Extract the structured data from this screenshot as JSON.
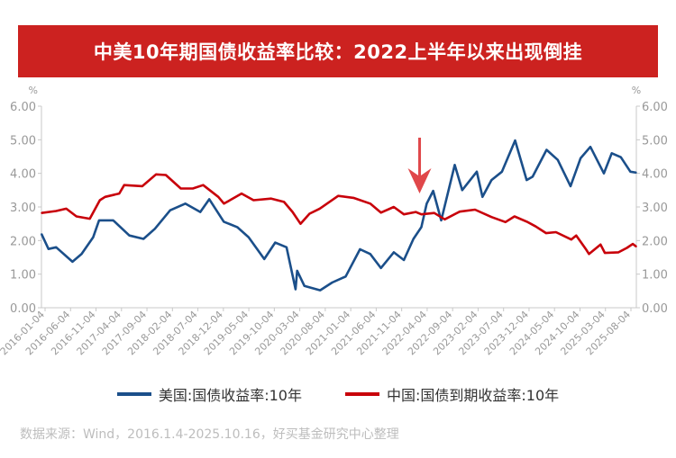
{
  "title": "中美10年期国债收益率比较：2022上半年以来出现倒挂",
  "footer": "数据来源：Wind，2016.1.4-2025.10.16，好买基金研究中心整理",
  "colors": {
    "title_bg": "#cc2220",
    "us": "#1b4f8a",
    "cn": "#c8000a",
    "arrow": "#e0474a"
  },
  "chart_data": {
    "type": "line",
    "title": "中美10年期国债收益率比较：2022上半年以来出现倒挂",
    "ylabel_left": "%",
    "ylabel_right": "%",
    "ylim": [
      0,
      6
    ],
    "yticks": [
      "0.00",
      "1.00",
      "2.00",
      "3.00",
      "4.00",
      "5.00",
      "6.00"
    ],
    "xrange": [
      "2016-01-04",
      "2025-10-16"
    ],
    "xticks": [
      "2016-01-04",
      "2016-06-04",
      "2016-11-04",
      "2017-04-04",
      "2017-09-04",
      "2018-02-04",
      "2018-07-04",
      "2018-12-04",
      "2019-05-04",
      "2019-10-04",
      "2020-03-04",
      "2020-08-04",
      "2021-01-04",
      "2021-06-04",
      "2021-11-04",
      "2022-04-04",
      "2022-09-04",
      "2023-02-04",
      "2023-07-04",
      "2023-12-04",
      "2024-05-04",
      "2024-10-04",
      "2025-03-04",
      "2025-08-04"
    ],
    "legend_position": "bottom",
    "annotation": {
      "type": "arrow",
      "date": "2022-04-04",
      "meaning": "inversion start"
    },
    "series": [
      {
        "name": "美国:国债收益率:10年",
        "key": "us",
        "points": [
          [
            "2016-01-04",
            2.2
          ],
          [
            "2016-02-15",
            1.75
          ],
          [
            "2016-04-01",
            1.8
          ],
          [
            "2016-07-08",
            1.37
          ],
          [
            "2016-09-01",
            1.6
          ],
          [
            "2016-11-10",
            2.1
          ],
          [
            "2016-12-15",
            2.6
          ],
          [
            "2017-03-10",
            2.6
          ],
          [
            "2017-06-15",
            2.15
          ],
          [
            "2017-09-08",
            2.05
          ],
          [
            "2017-11-15",
            2.35
          ],
          [
            "2018-02-15",
            2.9
          ],
          [
            "2018-05-17",
            3.1
          ],
          [
            "2018-08-15",
            2.85
          ],
          [
            "2018-10-08",
            3.23
          ],
          [
            "2019-01-03",
            2.56
          ],
          [
            "2019-03-25",
            2.4
          ],
          [
            "2019-06-01",
            2.1
          ],
          [
            "2019-09-03",
            1.45
          ],
          [
            "2019-11-08",
            1.94
          ],
          [
            "2020-01-15",
            1.8
          ],
          [
            "2020-03-09",
            0.55
          ],
          [
            "2020-03-19",
            1.1
          ],
          [
            "2020-05-01",
            0.65
          ],
          [
            "2020-08-04",
            0.52
          ],
          [
            "2020-10-15",
            0.75
          ],
          [
            "2021-01-04",
            0.93
          ],
          [
            "2021-03-31",
            1.74
          ],
          [
            "2021-06-01",
            1.6
          ],
          [
            "2021-08-04",
            1.18
          ],
          [
            "2021-10-20",
            1.65
          ],
          [
            "2021-12-20",
            1.42
          ],
          [
            "2022-02-15",
            2.05
          ],
          [
            "2022-04-04",
            2.4
          ],
          [
            "2022-05-06",
            3.1
          ],
          [
            "2022-06-14",
            3.48
          ],
          [
            "2022-08-01",
            2.6
          ],
          [
            "2022-10-21",
            4.25
          ],
          [
            "2022-12-05",
            3.5
          ],
          [
            "2023-03-03",
            4.05
          ],
          [
            "2023-04-06",
            3.3
          ],
          [
            "2023-05-30",
            3.8
          ],
          [
            "2023-08-01",
            4.05
          ],
          [
            "2023-10-19",
            4.98
          ],
          [
            "2023-12-27",
            3.8
          ],
          [
            "2024-02-01",
            3.9
          ],
          [
            "2024-04-25",
            4.7
          ],
          [
            "2024-07-01",
            4.4
          ],
          [
            "2024-09-16",
            3.62
          ],
          [
            "2024-11-15",
            4.45
          ],
          [
            "2025-01-13",
            4.79
          ],
          [
            "2025-04-04",
            4.0
          ],
          [
            "2025-05-21",
            4.6
          ],
          [
            "2025-07-15",
            4.48
          ],
          [
            "2025-09-10",
            4.05
          ],
          [
            "2025-10-16",
            4.02
          ]
        ]
      },
      {
        "name": "中国:国债到期收益率:10年",
        "key": "cn",
        "points": [
          [
            "2016-01-04",
            2.82
          ],
          [
            "2016-04-01",
            2.88
          ],
          [
            "2016-06-01",
            2.95
          ],
          [
            "2016-08-01",
            2.72
          ],
          [
            "2016-10-20",
            2.65
          ],
          [
            "2016-12-20",
            3.2
          ],
          [
            "2017-01-20",
            3.3
          ],
          [
            "2017-04-15",
            3.4
          ],
          [
            "2017-05-15",
            3.65
          ],
          [
            "2017-09-01",
            3.62
          ],
          [
            "2017-11-22",
            3.97
          ],
          [
            "2018-01-20",
            3.95
          ],
          [
            "2018-04-20",
            3.55
          ],
          [
            "2018-07-01",
            3.55
          ],
          [
            "2018-09-01",
            3.65
          ],
          [
            "2018-12-01",
            3.3
          ],
          [
            "2019-01-04",
            3.1
          ],
          [
            "2019-04-20",
            3.4
          ],
          [
            "2019-07-01",
            3.2
          ],
          [
            "2019-10-15",
            3.25
          ],
          [
            "2019-12-31",
            3.15
          ],
          [
            "2020-02-20",
            2.85
          ],
          [
            "2020-04-08",
            2.5
          ],
          [
            "2020-06-01",
            2.8
          ],
          [
            "2020-08-01",
            2.95
          ],
          [
            "2020-11-20",
            3.33
          ],
          [
            "2021-02-20",
            3.27
          ],
          [
            "2021-06-01",
            3.1
          ],
          [
            "2021-08-04",
            2.83
          ],
          [
            "2021-10-20",
            3.0
          ],
          [
            "2021-12-20",
            2.78
          ],
          [
            "2022-03-01",
            2.85
          ],
          [
            "2022-04-04",
            2.78
          ],
          [
            "2022-06-20",
            2.82
          ],
          [
            "2022-08-22",
            2.63
          ],
          [
            "2022-11-20",
            2.86
          ],
          [
            "2023-02-20",
            2.92
          ],
          [
            "2023-05-30",
            2.7
          ],
          [
            "2023-08-22",
            2.55
          ],
          [
            "2023-10-15",
            2.72
          ],
          [
            "2023-12-29",
            2.56
          ],
          [
            "2024-02-20",
            2.42
          ],
          [
            "2024-04-22",
            2.22
          ],
          [
            "2024-06-20",
            2.25
          ],
          [
            "2024-09-20",
            2.03
          ],
          [
            "2024-10-20",
            2.15
          ],
          [
            "2024-12-20",
            1.72
          ],
          [
            "2025-01-05",
            1.6
          ],
          [
            "2025-03-15",
            1.88
          ],
          [
            "2025-04-10",
            1.63
          ],
          [
            "2025-07-01",
            1.65
          ],
          [
            "2025-08-20",
            1.78
          ],
          [
            "2025-09-25",
            1.9
          ],
          [
            "2025-10-16",
            1.82
          ]
        ]
      }
    ]
  }
}
